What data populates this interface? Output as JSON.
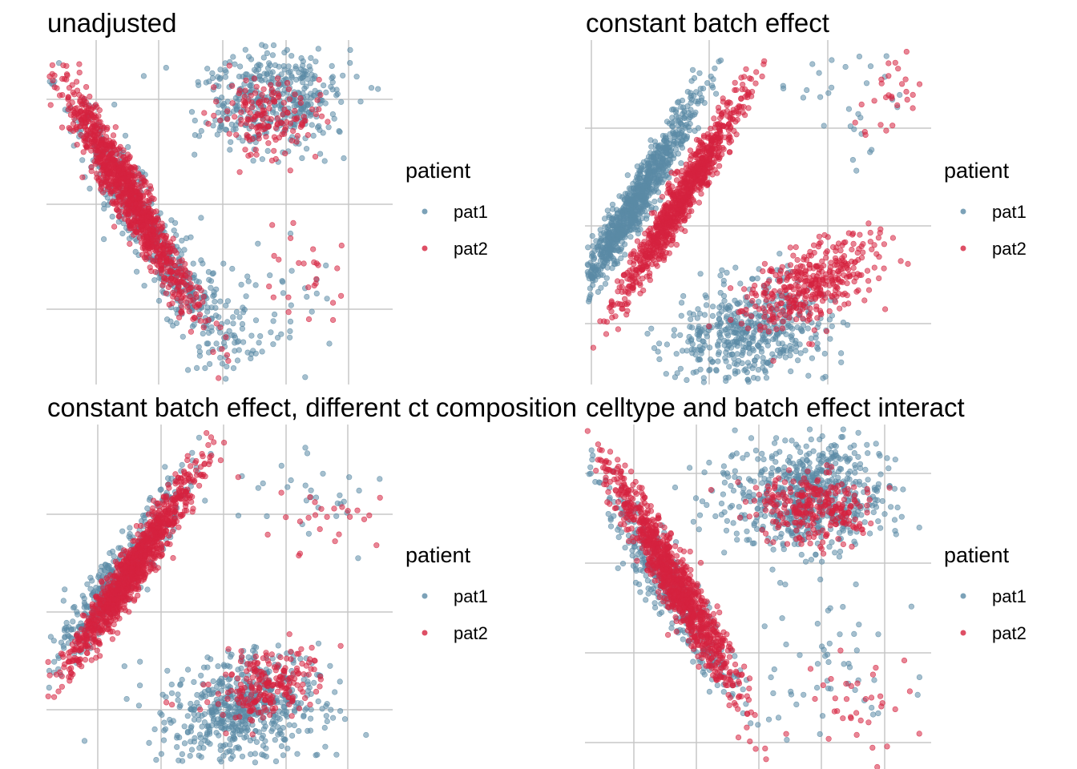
{
  "colors": {
    "pat1": "#5b8ba6",
    "pat2": "#d6233f",
    "grid": "#c7c7c7"
  },
  "legend": {
    "title": "patient"
  },
  "chart_data": [
    {
      "type": "scatter",
      "title": "unadjusted",
      "xlabel": "",
      "ylabel": "",
      "grid": true,
      "legend_position": "right",
      "series": [
        {
          "name": "pat1",
          "clusters": [
            {
              "x": -0.02,
              "y": 0.72,
              "sx": 0.12,
              "sy": 0.18,
              "rho": -0.93,
              "n": 320
            },
            {
              "x": 0.22,
              "y": 0.4,
              "sx": 0.1,
              "sy": 0.12,
              "rho": -0.75,
              "n": 150
            },
            {
              "x": 0.48,
              "y": 1.06,
              "sx": 0.13,
              "sy": 0.09,
              "rho": 0.1,
              "n": 420
            },
            {
              "x": 0.42,
              "y": 0.35,
              "sx": 0.15,
              "sy": 0.12,
              "rho": 0.0,
              "n": 60
            }
          ]
        },
        {
          "name": "pat2",
          "clusters": [
            {
              "x": -0.02,
              "y": 0.74,
              "sx": 0.11,
              "sy": 0.18,
              "rho": -0.95,
              "n": 1100
            },
            {
              "x": 0.46,
              "y": 1.0,
              "sx": 0.09,
              "sy": 0.06,
              "rho": 0.0,
              "n": 160
            },
            {
              "x": 0.6,
              "y": 0.48,
              "sx": 0.07,
              "sy": 0.08,
              "rho": -0.3,
              "n": 25
            }
          ]
        }
      ],
      "xlim": [
        -0.3,
        0.9
      ],
      "ylim": [
        0.15,
        1.25
      ]
    },
    {
      "type": "scatter",
      "title": "constant batch effect",
      "xlabel": "",
      "ylabel": "",
      "grid": true,
      "legend_position": "right",
      "series": [
        {
          "name": "pat1",
          "clusters": [
            {
              "x": -0.04,
              "y": 0.7,
              "sx": 0.1,
              "sy": 0.17,
              "rho": 0.96,
              "n": 950
            },
            {
              "x": 0.34,
              "y": 0.25,
              "sx": 0.13,
              "sy": 0.09,
              "rho": 0.2,
              "n": 480
            },
            {
              "x": 0.62,
              "y": 1.02,
              "sx": 0.1,
              "sy": 0.1,
              "rho": 0.0,
              "n": 30
            }
          ]
        },
        {
          "name": "pat2",
          "clusters": [
            {
              "x": 0.12,
              "y": 0.72,
              "sx": 0.1,
              "sy": 0.17,
              "rho": 0.96,
              "n": 950
            },
            {
              "x": 0.56,
              "y": 0.42,
              "sx": 0.11,
              "sy": 0.08,
              "rho": 0.55,
              "n": 380
            },
            {
              "x": 0.82,
              "y": 1.08,
              "sx": 0.07,
              "sy": 0.09,
              "rho": 0.3,
              "n": 30
            }
          ]
        }
      ],
      "xlim": [
        -0.2,
        0.95
      ],
      "ylim": [
        0.1,
        1.25
      ]
    },
    {
      "type": "scatter",
      "title": "constant batch effect, different ct composition",
      "xlabel": "",
      "ylabel": "",
      "grid": true,
      "legend_position": "right",
      "series": [
        {
          "name": "pat1",
          "clusters": [
            {
              "x": 0.02,
              "y": 0.72,
              "sx": 0.12,
              "sy": 0.17,
              "rho": 0.94,
              "n": 420
            },
            {
              "x": 0.44,
              "y": 0.28,
              "sx": 0.13,
              "sy": 0.09,
              "rho": 0.15,
              "n": 560
            },
            {
              "x": 0.7,
              "y": 1.02,
              "sx": 0.1,
              "sy": 0.1,
              "rho": 0.0,
              "n": 30
            }
          ]
        },
        {
          "name": "pat2",
          "clusters": [
            {
              "x": 0.07,
              "y": 0.74,
              "sx": 0.11,
              "sy": 0.17,
              "rho": 0.96,
              "n": 1100
            },
            {
              "x": 0.52,
              "y": 0.36,
              "sx": 0.09,
              "sy": 0.06,
              "rho": 0.35,
              "n": 220
            },
            {
              "x": 0.72,
              "y": 0.95,
              "sx": 0.1,
              "sy": 0.1,
              "rho": 0.0,
              "n": 25
            }
          ]
        }
      ],
      "xlim": [
        -0.2,
        0.95
      ],
      "ylim": [
        0.1,
        1.25
      ]
    },
    {
      "type": "scatter",
      "title": "celltype and batch effect interact",
      "xlabel": "",
      "ylabel": "",
      "grid": true,
      "legend_position": "right",
      "series": [
        {
          "name": "pat1",
          "clusters": [
            {
              "x": -0.02,
              "y": 0.72,
              "sx": 0.12,
              "sy": 0.18,
              "rho": -0.93,
              "n": 360
            },
            {
              "x": 0.47,
              "y": 1.02,
              "sx": 0.14,
              "sy": 0.09,
              "rho": 0.05,
              "n": 650
            },
            {
              "x": 0.56,
              "y": 0.45,
              "sx": 0.12,
              "sy": 0.12,
              "rho": 0.0,
              "n": 50
            }
          ]
        },
        {
          "name": "pat2",
          "clusters": [
            {
              "x": 0.0,
              "y": 0.74,
              "sx": 0.11,
              "sy": 0.18,
              "rho": -0.95,
              "n": 1050
            },
            {
              "x": 0.47,
              "y": 0.98,
              "sx": 0.1,
              "sy": 0.06,
              "rho": 0.0,
              "n": 280
            },
            {
              "x": 0.68,
              "y": 0.32,
              "sx": 0.1,
              "sy": 0.08,
              "rho": -0.4,
              "n": 35
            }
          ]
        }
      ],
      "xlim": [
        -0.3,
        0.9
      ],
      "ylim": [
        0.15,
        1.25
      ]
    }
  ],
  "legends": [
    {
      "title": "patient",
      "entries": [
        "pat1",
        "pat2"
      ]
    },
    {
      "title": "patient",
      "entries": [
        "pat1",
        "pat2"
      ]
    },
    {
      "title": "patient",
      "entries": [
        "pat1",
        "pat2"
      ]
    },
    {
      "title": "patient",
      "entries": [
        "pat1",
        "pat2"
      ]
    }
  ]
}
